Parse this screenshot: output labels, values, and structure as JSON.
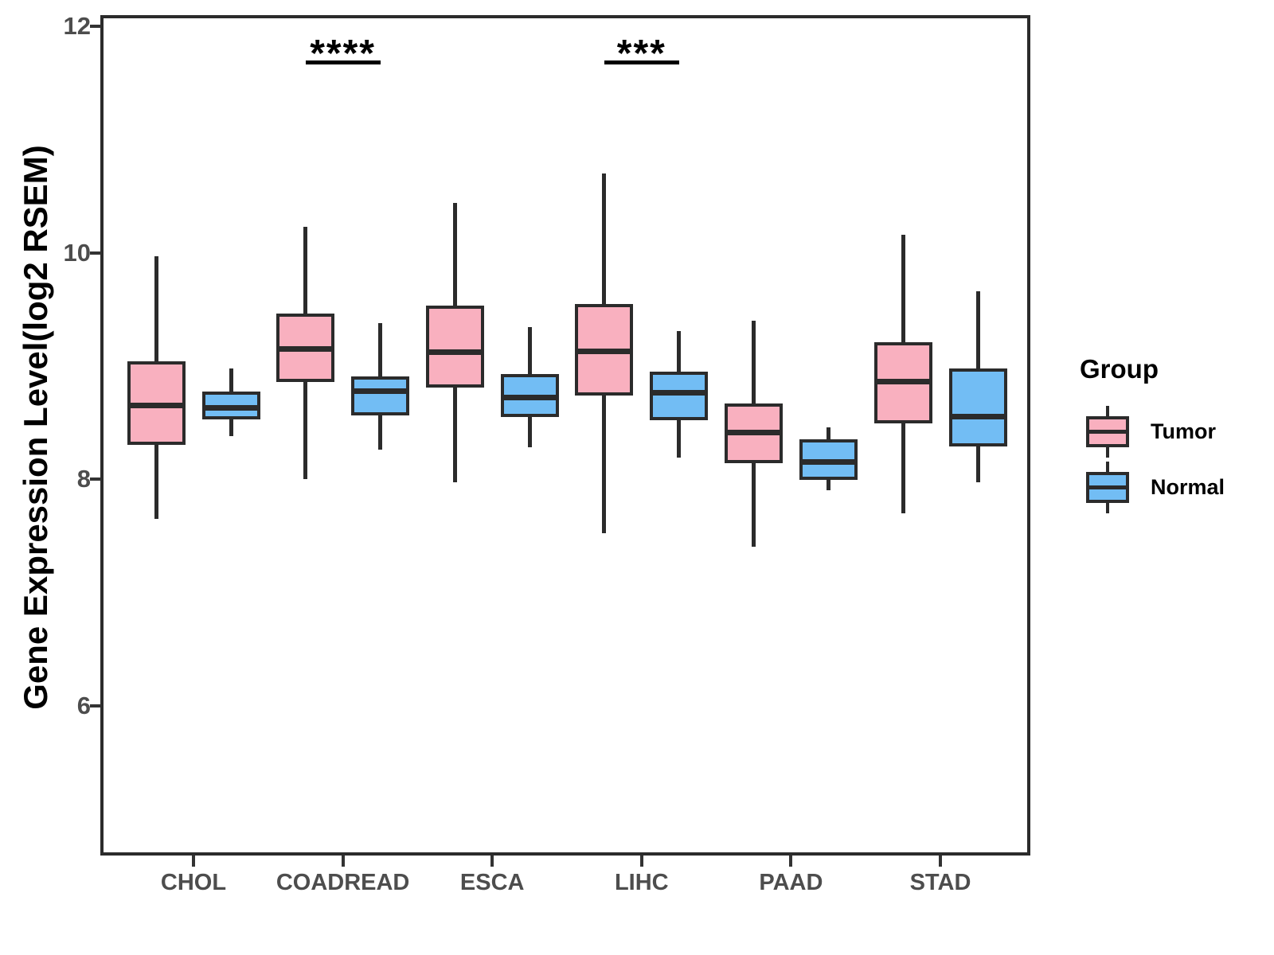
{
  "chart_data": {
    "type": "boxplot",
    "title": "",
    "xlabel": "",
    "ylabel": "Gene Expression Level(log2 RSEM)",
    "ylim": [
      4.7,
      12.1
    ],
    "yticks": [
      6,
      8,
      10,
      12
    ],
    "grid": false,
    "categories": [
      "CHOL",
      "COADREAD",
      "ESCA",
      "LIHC",
      "PAAD",
      "STAD"
    ],
    "legend": {
      "title": "Group",
      "position": "right"
    },
    "groups": [
      {
        "name": "Tumor",
        "color": "#f9b0bf",
        "stroke": "#2b2b2b",
        "boxes": [
          {
            "category": "CHOL",
            "whisker_low": 7.65,
            "q1": 8.3,
            "median": 8.65,
            "q3": 9.04,
            "whisker_high": 9.97
          },
          {
            "category": "COADREAD",
            "whisker_low": 8.0,
            "q1": 8.86,
            "median": 9.15,
            "q3": 9.46,
            "whisker_high": 10.23
          },
          {
            "category": "ESCA",
            "whisker_low": 7.97,
            "q1": 8.81,
            "median": 9.12,
            "q3": 9.53,
            "whisker_high": 10.44
          },
          {
            "category": "LIHC",
            "whisker_low": 7.52,
            "q1": 8.74,
            "median": 9.13,
            "q3": 9.55,
            "whisker_high": 10.7
          },
          {
            "category": "PAAD",
            "whisker_low": 7.4,
            "q1": 8.14,
            "median": 8.41,
            "q3": 8.67,
            "whisker_high": 9.4
          },
          {
            "category": "STAD",
            "whisker_low": 7.7,
            "q1": 8.49,
            "median": 8.86,
            "q3": 9.21,
            "whisker_high": 10.16
          }
        ]
      },
      {
        "name": "Normal",
        "color": "#72bdf4",
        "stroke": "#2b2b2b",
        "boxes": [
          {
            "category": "CHOL",
            "whisker_low": 8.38,
            "q1": 8.53,
            "median": 8.63,
            "q3": 8.77,
            "whisker_high": 8.98
          },
          {
            "category": "COADREAD",
            "whisker_low": 8.26,
            "q1": 8.56,
            "median": 8.78,
            "q3": 8.91,
            "whisker_high": 9.38
          },
          {
            "category": "ESCA",
            "whisker_low": 8.28,
            "q1": 8.55,
            "median": 8.72,
            "q3": 8.93,
            "whisker_high": 9.34
          },
          {
            "category": "LIHC",
            "whisker_low": 8.19,
            "q1": 8.52,
            "median": 8.76,
            "q3": 8.95,
            "whisker_high": 9.31
          },
          {
            "category": "PAAD",
            "whisker_low": 7.9,
            "q1": 7.99,
            "median": 8.15,
            "q3": 8.35,
            "whisker_high": 8.46
          },
          {
            "category": "STAD",
            "whisker_low": 7.97,
            "q1": 8.29,
            "median": 8.55,
            "q3": 8.98,
            "whisker_high": 9.66
          }
        ]
      }
    ],
    "annotations": [
      {
        "category": "COADREAD",
        "text": "****",
        "y": 11.7
      },
      {
        "category": "LIHC",
        "text": "***",
        "y": 11.7
      }
    ]
  }
}
